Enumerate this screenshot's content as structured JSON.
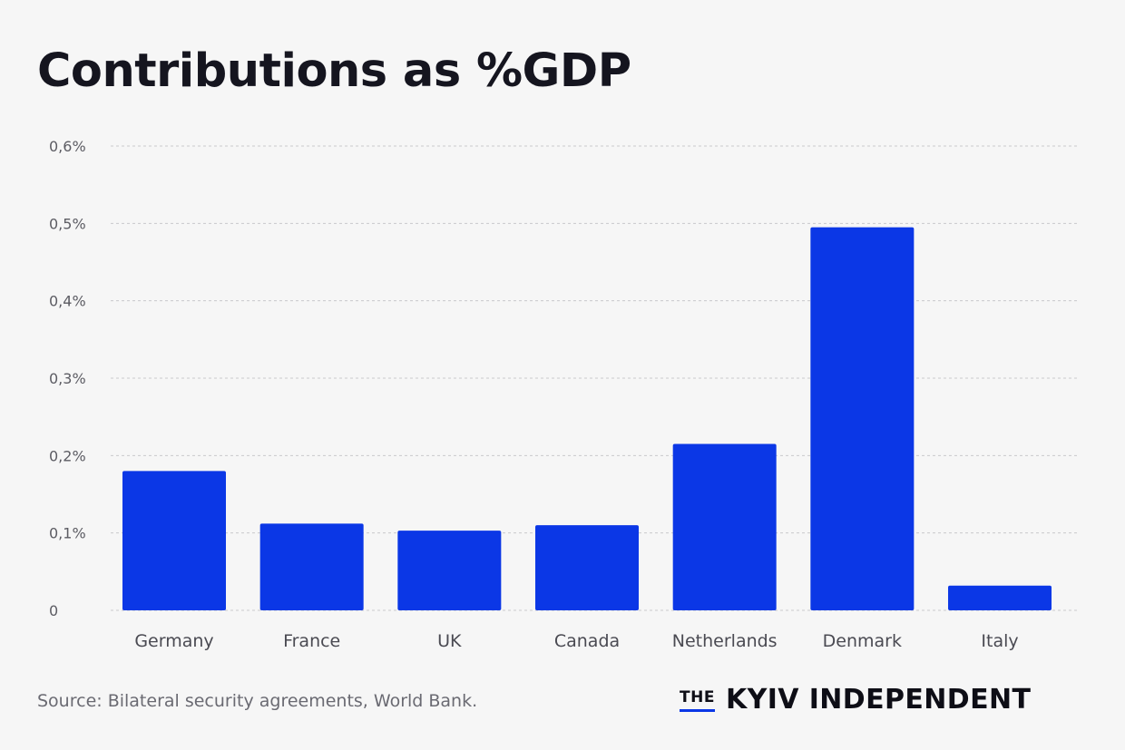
{
  "title": "Contributions as %GDP",
  "source": "Source: Bilateral security agreements, World Bank.",
  "brand": {
    "prefix": "THE",
    "name": "KYIV INDEPENDENT"
  },
  "colors": {
    "bar": "#0b37e6",
    "background": "#f6f6f6",
    "grid": "#c9c9cc",
    "axis_text": "#5c5c63",
    "category_text": "#4a4a52",
    "title": "#15151f"
  },
  "chart_data": {
    "type": "bar",
    "title": "Contributions as %GDP",
    "xlabel": "",
    "ylabel": "",
    "categories": [
      "Germany",
      "France",
      "UK",
      "Canada",
      "Netherlands",
      "Denmark",
      "Italy"
    ],
    "values": [
      0.18,
      0.112,
      0.103,
      0.11,
      0.215,
      0.495,
      0.032
    ],
    "ylim": [
      0,
      0.6
    ],
    "yticks": [
      0,
      0.1,
      0.2,
      0.3,
      0.4,
      0.5,
      0.6
    ],
    "ytick_labels": [
      "0",
      "0,1%",
      "0,2%",
      "0,3%",
      "0,4%",
      "0,5%",
      "0,6%"
    ],
    "grid": true,
    "legend": "none"
  }
}
